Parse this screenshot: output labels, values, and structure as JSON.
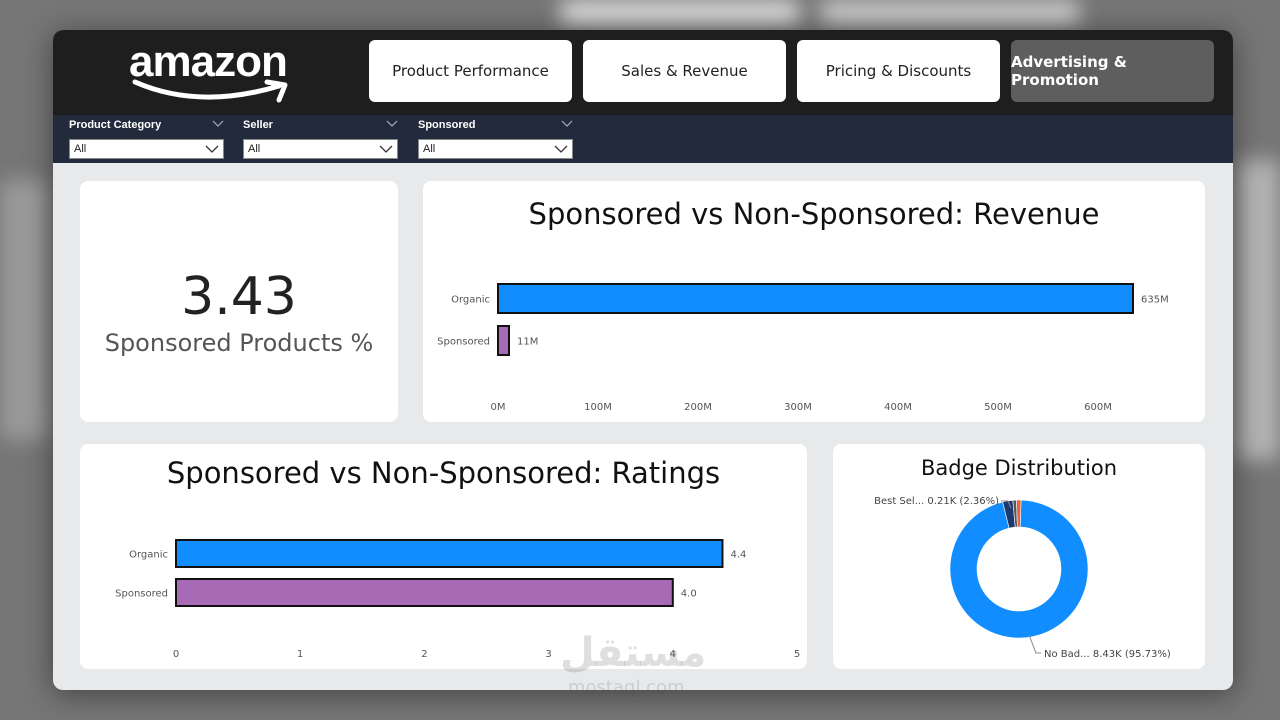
{
  "brand": {
    "logo_text": "amazon"
  },
  "nav": {
    "tabs": [
      {
        "label": "Product Performance",
        "active": false
      },
      {
        "label": "Sales & Revenue",
        "active": false
      },
      {
        "label": "Pricing & Discounts",
        "active": false
      },
      {
        "label": "Advertising & Promotion",
        "active": true
      }
    ]
  },
  "filters": [
    {
      "label": "Product Category",
      "value": "All"
    },
    {
      "label": "Seller",
      "value": "All"
    },
    {
      "label": "Sponsored",
      "value": "All"
    }
  ],
  "kpi": {
    "value": "3.43",
    "label": "Sponsored Products %"
  },
  "colors": {
    "organic": "#118dff",
    "sponsored": "#a66bb4",
    "navy": "#1c3a70",
    "orange": "#e5643c"
  },
  "watermark": {
    "text": "مستقل",
    "sub": "mostaql.com"
  },
  "chart_data": [
    {
      "type": "bar",
      "orientation": "horizontal",
      "title": "Sponsored vs Non-Sponsored: Revenue",
      "categories": [
        "Organic",
        "Sponsored"
      ],
      "values": [
        635,
        11
      ],
      "data_labels": [
        "635M",
        "11M"
      ],
      "xlim": [
        0,
        600
      ],
      "xticks": [
        "0M",
        "100M",
        "200M",
        "300M",
        "400M",
        "500M",
        "600M"
      ]
    },
    {
      "type": "bar",
      "orientation": "horizontal",
      "title": "Sponsored vs Non-Sponsored: Ratings",
      "categories": [
        "Organic",
        "Sponsored"
      ],
      "values": [
        4.4,
        4.0
      ],
      "data_labels": [
        "4.4",
        "4.0"
      ],
      "xlim": [
        0,
        5
      ],
      "xticks": [
        "0",
        "1",
        "2",
        "3",
        "4",
        "5"
      ]
    },
    {
      "type": "pie",
      "title": "Badge Distribution",
      "slices": [
        {
          "label": "No Bad...",
          "value": 8430,
          "percent": 95.73,
          "data_label": "No Bad... 8.43K (95.73%)"
        },
        {
          "label": "Best Sel...",
          "value": 210,
          "percent": 2.36,
          "data_label": "Best Sel... 0.21K (2.36%)"
        },
        {
          "label": "",
          "value": 95,
          "percent": 1.08
        },
        {
          "label": "",
          "value": 73,
          "percent": 0.83
        }
      ]
    }
  ]
}
